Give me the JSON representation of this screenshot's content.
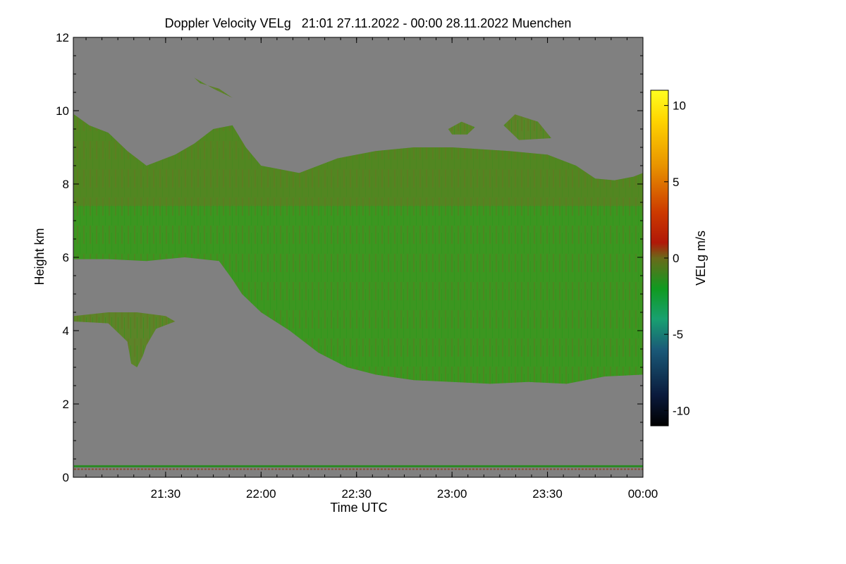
{
  "chart_data": {
    "type": "heatmap",
    "title": "Doppler Velocity VELg   21:01 27.11.2022 - 00:00 28.11.2022 Muenchen",
    "xlabel": "Time UTC",
    "ylabel": "Height km",
    "x_range_hours": [
      21.0167,
      24.0
    ],
    "ylim": [
      0,
      12
    ],
    "x_ticks": [
      {
        "value": 21.5,
        "label": "21:30"
      },
      {
        "value": 22.0,
        "label": "22:00"
      },
      {
        "value": 22.5,
        "label": "22:30"
      },
      {
        "value": 23.0,
        "label": "23:00"
      },
      {
        "value": 23.5,
        "label": "23:30"
      },
      {
        "value": 24.0,
        "label": "00:00"
      }
    ],
    "y_ticks": [
      {
        "value": 0,
        "label": "0"
      },
      {
        "value": 2,
        "label": "2"
      },
      {
        "value": 4,
        "label": "4"
      },
      {
        "value": 6,
        "label": "6"
      },
      {
        "value": 8,
        "label": "8"
      },
      {
        "value": 10,
        "label": "10"
      },
      {
        "value": 12,
        "label": "12"
      }
    ],
    "colorbar": {
      "label": "VELg m/s",
      "range": [
        -11,
        11
      ],
      "ticks": [
        {
          "value": 10,
          "label": "10"
        },
        {
          "value": 5,
          "label": "5"
        },
        {
          "value": 0,
          "label": "0"
        },
        {
          "value": -5,
          "label": "-5"
        },
        {
          "value": -10,
          "label": "-10"
        }
      ],
      "stops": [
        {
          "value": -11,
          "color": "#000000"
        },
        {
          "value": -9,
          "color": "#0a1a3c"
        },
        {
          "value": -6,
          "color": "#1a5a78"
        },
        {
          "value": -4,
          "color": "#18a070"
        },
        {
          "value": -2,
          "color": "#109a20"
        },
        {
          "value": 0,
          "color": "#6a6a1a"
        },
        {
          "value": 1,
          "color": "#b01808"
        },
        {
          "value": 3,
          "color": "#cc3a00"
        },
        {
          "value": 6,
          "color": "#e89200"
        },
        {
          "value": 9,
          "color": "#ffd400"
        },
        {
          "value": 11,
          "color": "#ffff20"
        }
      ]
    },
    "colors": {
      "no_signal": "#808080",
      "cloud_main": "#3c9620",
      "cloud_upper": "#5c8428",
      "cloud_reddish": "#7a6a24",
      "ground_line": "#2a8a22",
      "ground_clutter": "#8a4a30"
    },
    "echo_regions": [
      {
        "name": "main-cloud",
        "outline": [
          [
            21.02,
            9.9
          ],
          [
            21.1,
            9.6
          ],
          [
            21.2,
            9.4
          ],
          [
            21.3,
            8.9
          ],
          [
            21.4,
            8.5
          ],
          [
            21.55,
            8.8
          ],
          [
            21.65,
            9.1
          ],
          [
            21.75,
            9.5
          ],
          [
            21.85,
            9.6
          ],
          [
            21.92,
            9.0
          ],
          [
            22.0,
            8.5
          ],
          [
            22.2,
            8.3
          ],
          [
            22.4,
            8.7
          ],
          [
            22.6,
            8.9
          ],
          [
            22.8,
            9.0
          ],
          [
            23.0,
            9.0
          ],
          [
            23.3,
            8.9
          ],
          [
            23.5,
            8.8
          ],
          [
            23.65,
            8.5
          ],
          [
            23.75,
            8.15
          ],
          [
            23.85,
            8.1
          ],
          [
            23.95,
            8.2
          ],
          [
            24.0,
            8.3
          ],
          [
            24.0,
            2.8
          ],
          [
            23.8,
            2.75
          ],
          [
            23.6,
            2.55
          ],
          [
            23.4,
            2.6
          ],
          [
            23.2,
            2.55
          ],
          [
            23.0,
            2.6
          ],
          [
            22.8,
            2.65
          ],
          [
            22.6,
            2.8
          ],
          [
            22.45,
            3.0
          ],
          [
            22.3,
            3.4
          ],
          [
            22.15,
            4.0
          ],
          [
            22.0,
            4.5
          ],
          [
            21.9,
            5.0
          ],
          [
            21.85,
            5.4
          ],
          [
            21.78,
            5.9
          ],
          [
            21.6,
            6.0
          ],
          [
            21.4,
            5.9
          ],
          [
            21.2,
            5.95
          ],
          [
            21.02,
            5.95
          ]
        ]
      },
      {
        "name": "mid-level-patch",
        "outline": [
          [
            21.02,
            4.4
          ],
          [
            21.2,
            4.5
          ],
          [
            21.35,
            4.5
          ],
          [
            21.5,
            4.4
          ],
          [
            21.55,
            4.25
          ],
          [
            21.45,
            4.05
          ],
          [
            21.4,
            3.6
          ],
          [
            21.38,
            3.3
          ],
          [
            21.35,
            3.0
          ],
          [
            21.32,
            3.1
          ],
          [
            21.3,
            3.7
          ],
          [
            21.2,
            4.2
          ],
          [
            21.02,
            4.25
          ]
        ]
      },
      {
        "name": "upper-fragment-1",
        "outline": [
          [
            21.65,
            10.9
          ],
          [
            21.75,
            10.6
          ],
          [
            21.85,
            10.35
          ],
          [
            21.78,
            10.6
          ],
          [
            21.68,
            10.75
          ]
        ]
      },
      {
        "name": "upper-fragment-2",
        "outline": [
          [
            23.27,
            9.6
          ],
          [
            23.33,
            9.9
          ],
          [
            23.45,
            9.7
          ],
          [
            23.52,
            9.25
          ],
          [
            23.35,
            9.2
          ]
        ]
      },
      {
        "name": "upper-fragment-3",
        "outline": [
          [
            22.98,
            9.5
          ],
          [
            23.05,
            9.7
          ],
          [
            23.12,
            9.55
          ],
          [
            23.08,
            9.35
          ],
          [
            23.0,
            9.35
          ]
        ]
      }
    ],
    "horizontal_lines": [
      {
        "name": "ground-line",
        "height_km": 0.3,
        "x_start": 21.02,
        "x_end": 24.0
      }
    ]
  }
}
